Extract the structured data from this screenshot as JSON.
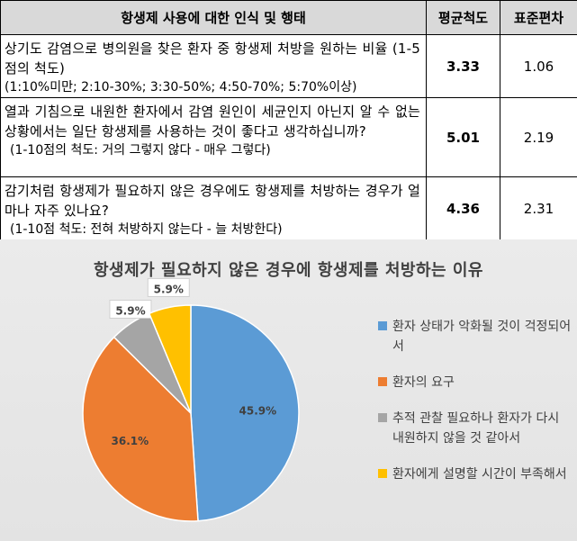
{
  "table": {
    "headers": [
      "항생제 사용에 대한 인식 및 행태",
      "평균척도",
      "표준편차"
    ],
    "rows": [
      {
        "question": "상기도 감염으로 병의원을 찾은 환자 중 항생제 처방을 원하는 비율 (1-5점의 척도)",
        "note": "(1:10%미만; 2:10-30%; 3:30-50%; 4:50-70%; 5:70%이상)",
        "mean": "3.33",
        "sd": "1.06"
      },
      {
        "question": "열과 기침으로 내원한 환자에서 감염 원인이 세균인지 아닌지 알 수 없는 상황에서는 일단 항생제를 사용하는 것이 좋다고 생각하십니까?",
        "note": "(1-10점의 척도: 거의 그렇지 않다 - 매우 그렇다)",
        "mean": "5.01",
        "sd": "2.19"
      },
      {
        "question": "감기처럼 항생제가 필요하지 않은 경우에도 항생제를 처방하는 경우가 얼마나 자주 있나요?",
        "note": "(1-10점 척도: 전혀 처방하지 않는다 - 늘 처방한다)",
        "mean": "4.36",
        "sd": "2.31"
      }
    ]
  },
  "chart_data": {
    "type": "pie",
    "title": "항생제가 필요하지 않은 경우에 항생제를 처방하는 이유",
    "legend_position": "right",
    "slices": [
      {
        "name": "환자 상태가 악화될 것이 걱정되어서",
        "value": 45.9,
        "label": "45.9%",
        "color": "#5b9bd5"
      },
      {
        "name": "환자의 요구",
        "value": 36.1,
        "label": "36.1%",
        "color": "#ed7d31"
      },
      {
        "name": "추적 관찰 필요하나 환자가 다시 내원하지 않을 것 같아서",
        "value": 5.9,
        "label": "5.9%",
        "color": "#a5a5a5"
      },
      {
        "name": "환자에게 설명할 시간이 부족해서",
        "value": 5.9,
        "label": "5.9%",
        "color": "#ffc000"
      }
    ]
  }
}
